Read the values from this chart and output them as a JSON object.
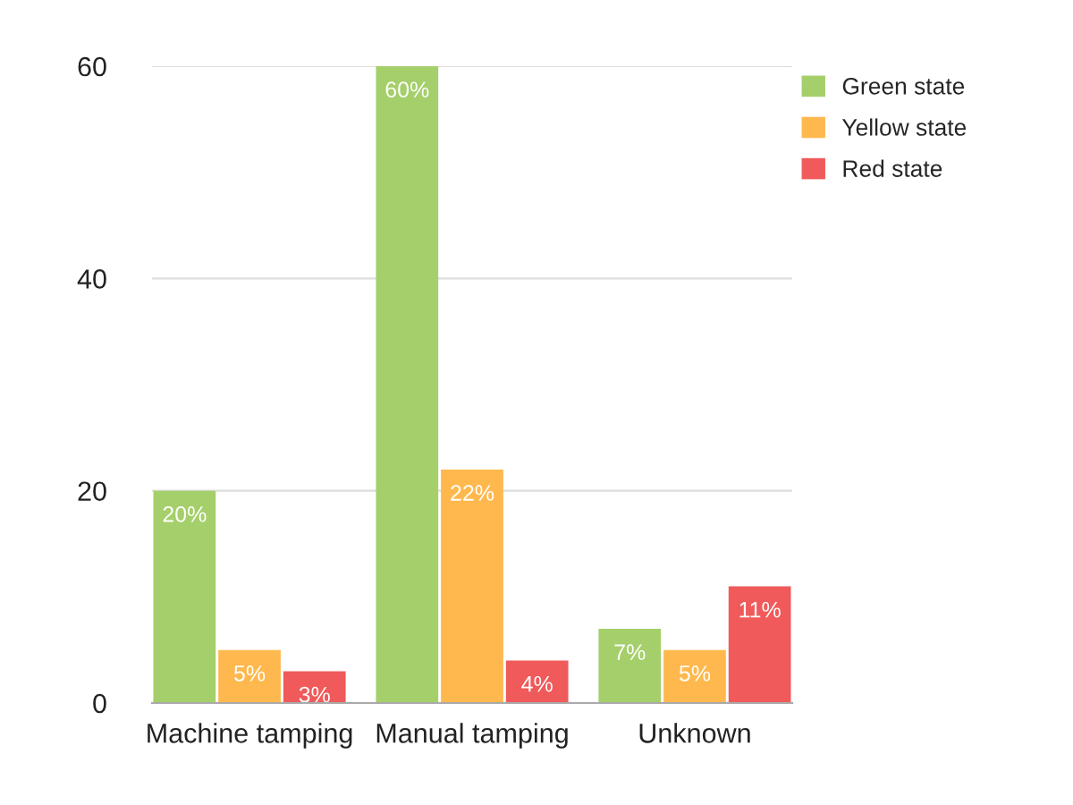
{
  "chart_data": {
    "type": "bar",
    "categories": [
      "Machine tamping",
      "Manual tamping",
      "Unknown"
    ],
    "series": [
      {
        "name": "Green state",
        "color": "#a5cf6a",
        "values": [
          20,
          60,
          7
        ],
        "value_labels": [
          "20%",
          "60%",
          "7%"
        ]
      },
      {
        "name": "Yellow state",
        "color": "#ffb84d",
        "values": [
          5,
          22,
          5
        ],
        "value_labels": [
          "5%",
          "22%",
          "5%"
        ]
      },
      {
        "name": "Red state",
        "color": "#f05a5a",
        "values": [
          3,
          4,
          11
        ],
        "value_labels": [
          "3%",
          "4%",
          "11%"
        ]
      }
    ],
    "ylim": [
      0,
      60
    ],
    "yticks": [
      0,
      20,
      40,
      60
    ],
    "grid": "y",
    "legend": "top right"
  }
}
